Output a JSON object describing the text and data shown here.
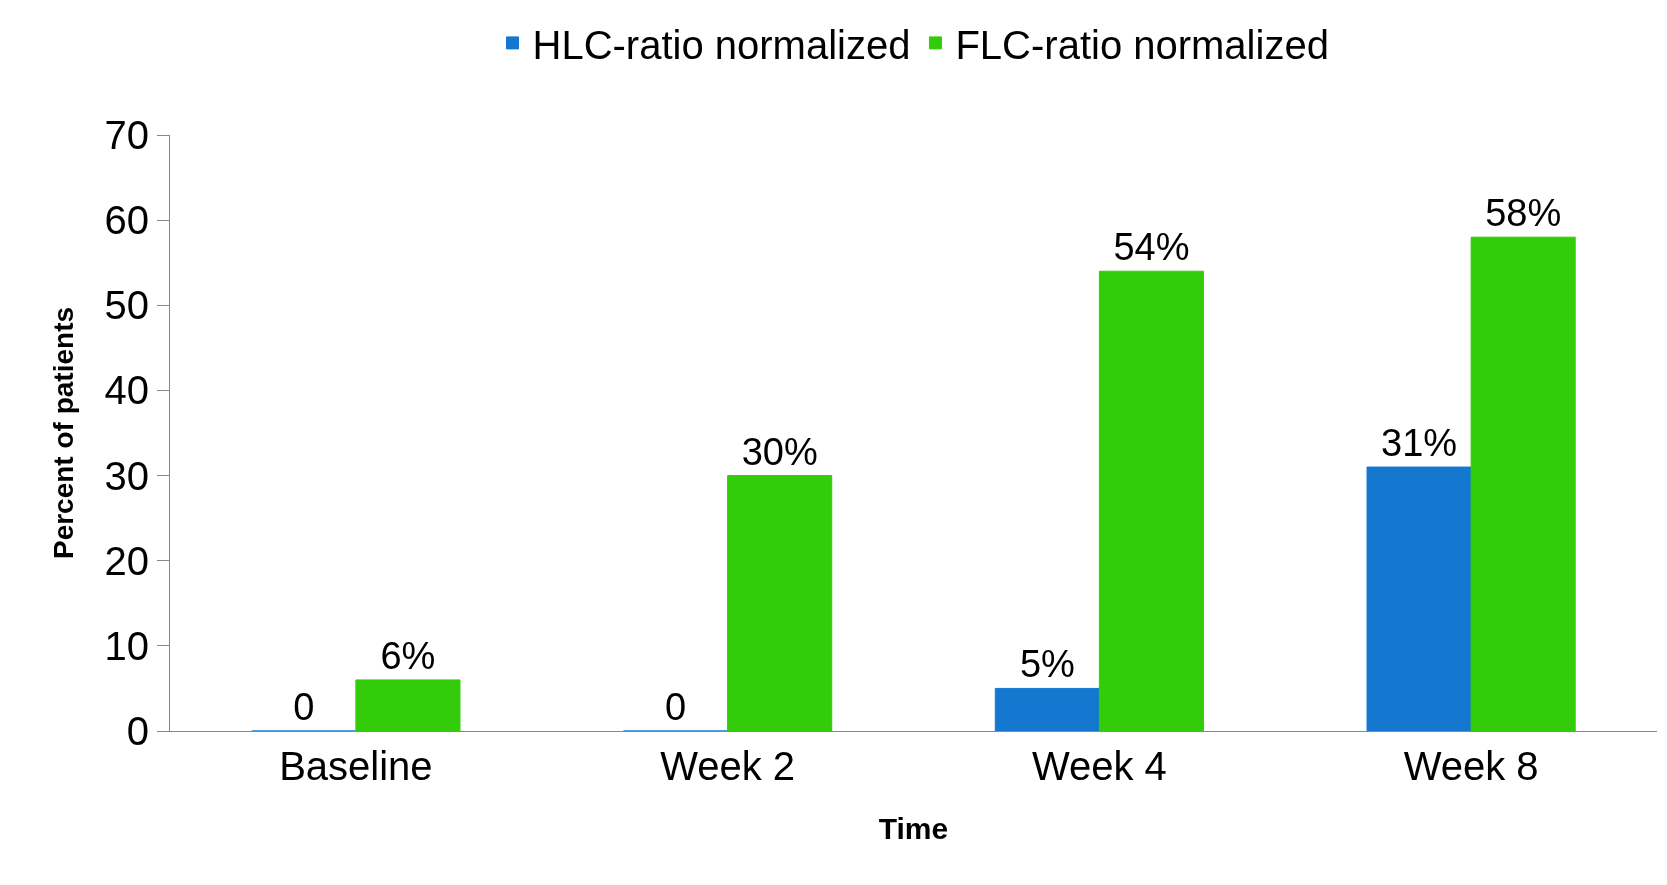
{
  "chart_data": {
    "type": "bar",
    "xlabel": "Time",
    "ylabel": "Percent of patients",
    "categories": [
      "Baseline",
      "Week 2",
      "Week 4",
      "Week 8"
    ],
    "series": [
      {
        "name": "HLC-ratio normalized",
        "color": "#1477d0",
        "values": [
          0,
          0,
          5,
          31
        ],
        "value_labels": [
          "0",
          "0",
          "5%",
          "31%"
        ]
      },
      {
        "name": "FLC-ratio normalized",
        "color": "#33cc0a",
        "values": [
          6,
          30,
          54,
          58
        ],
        "value_labels": [
          "6%",
          "30%",
          "54%",
          "58%"
        ]
      }
    ],
    "ylim": [
      0,
      70
    ],
    "yticks": [
      0,
      10,
      20,
      30,
      40,
      50,
      60,
      70
    ],
    "grid": false,
    "legend": "top"
  }
}
